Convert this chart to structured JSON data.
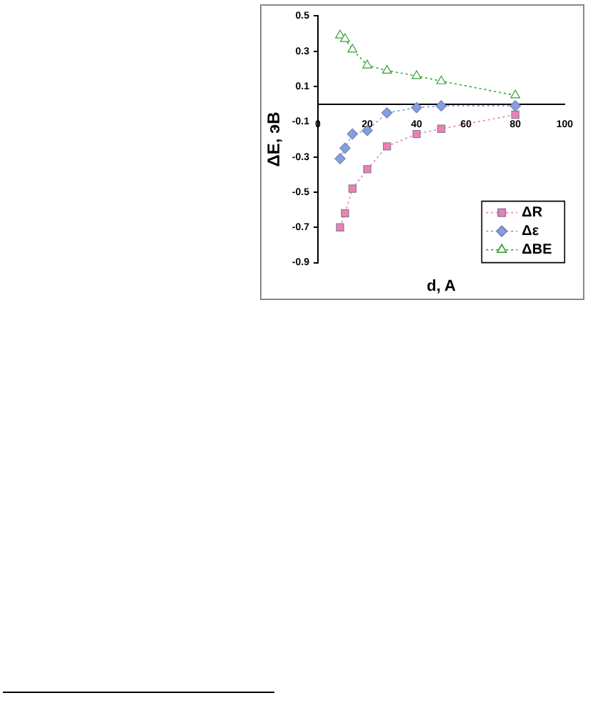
{
  "chart_data": {
    "type": "line",
    "xlabel": "d, A",
    "ylabel": "ΔE, эВ",
    "x": [
      9,
      11,
      14,
      20,
      28,
      40,
      50,
      80
    ],
    "series": [
      {
        "name": "ΔR",
        "color": "#f07fb0",
        "marker": "square",
        "values": [
          -0.7,
          -0.62,
          -0.48,
          -0.37,
          -0.24,
          -0.17,
          -0.14,
          -0.06
        ]
      },
      {
        "name": "Δε",
        "color": "#7f9fe8",
        "marker": "diamond",
        "values": [
          -0.31,
          -0.25,
          -0.17,
          -0.15,
          -0.05,
          -0.02,
          -0.01,
          -0.01
        ]
      },
      {
        "name": "ΔBE",
        "color": "#33a033",
        "marker": "triangle",
        "values": [
          0.39,
          0.37,
          0.31,
          0.22,
          0.19,
          0.16,
          0.13,
          0.05
        ]
      }
    ],
    "xlim": [
      0,
      100
    ],
    "xticks": [
      0,
      20,
      40,
      60,
      80,
      100
    ],
    "ylim": [
      -0.9,
      0.5
    ],
    "yticks": [
      -0.9,
      -0.7,
      -0.5,
      -0.3,
      -0.1,
      0.1,
      0.3,
      0.5
    ],
    "grid": false,
    "legend": "bottom right",
    "line_style": "dotted"
  }
}
